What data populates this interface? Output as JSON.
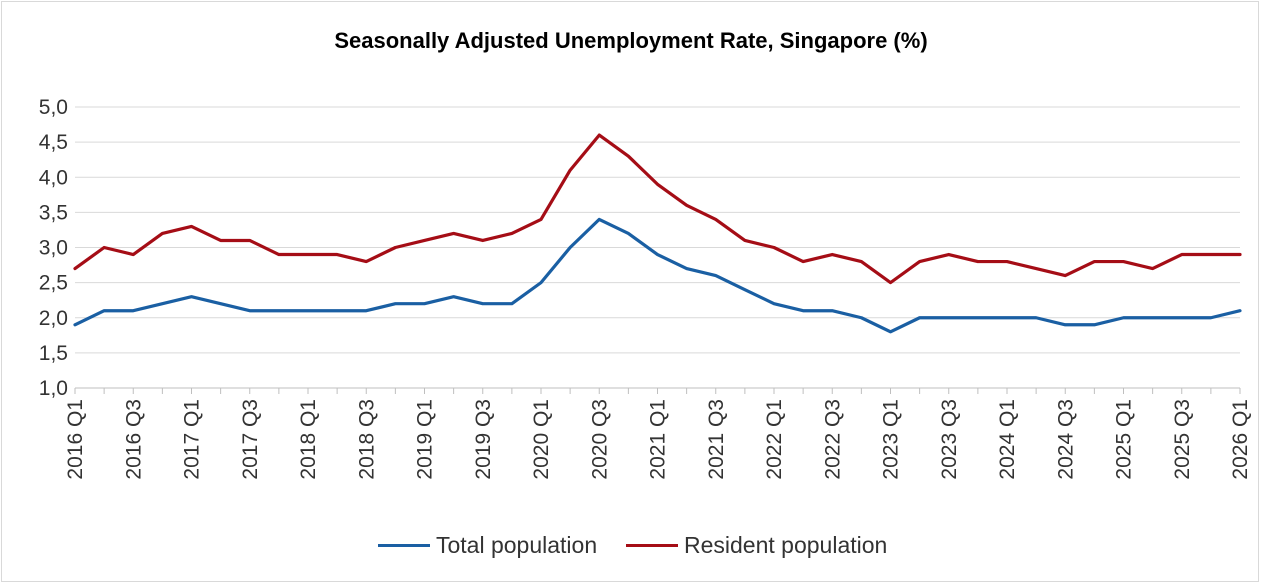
{
  "chart_data": {
    "type": "line",
    "title": "Seasonally Adjusted Unemployment Rate, Singapore (%)",
    "xlabel": "",
    "ylabel": "",
    "ylim": [
      1.0,
      5.0
    ],
    "y_ticks": [
      "1,0",
      "1,5",
      "2,0",
      "2,5",
      "3,0",
      "3,5",
      "4,0",
      "4,5",
      "5,0"
    ],
    "x_tick_labels": [
      "2016 Q1",
      "2016 Q3",
      "2017 Q1",
      "2017 Q3",
      "2018 Q1",
      "2018 Q3",
      "2019 Q1",
      "2019 Q3",
      "2020 Q1",
      "2020 Q3",
      "2021 Q1",
      "2021 Q3",
      "2022 Q1",
      "2022 Q3",
      "2023 Q1",
      "2023 Q3",
      "2024 Q1",
      "2024 Q3",
      "2025 Q1",
      "2025 Q3",
      "2026 Q1"
    ],
    "categories": [
      "2016 Q1",
      "2016 Q2",
      "2016 Q3",
      "2016 Q4",
      "2017 Q1",
      "2017 Q2",
      "2017 Q3",
      "2017 Q4",
      "2018 Q1",
      "2018 Q2",
      "2018 Q3",
      "2018 Q4",
      "2019 Q1",
      "2019 Q2",
      "2019 Q3",
      "2019 Q4",
      "2020 Q1",
      "2020 Q2",
      "2020 Q3",
      "2020 Q4",
      "2021 Q1",
      "2021 Q2",
      "2021 Q3",
      "2021 Q4",
      "2022 Q1",
      "2022 Q2",
      "2022 Q3",
      "2022 Q4",
      "2023 Q1",
      "2023 Q2",
      "2023 Q3",
      "2023 Q4",
      "2024 Q1",
      "2024 Q2",
      "2024 Q3",
      "2024 Q4",
      "2025 Q1",
      "2025 Q2",
      "2025 Q3",
      "2025 Q4",
      "2026 Q1"
    ],
    "series": [
      {
        "name": "Total population",
        "color": "#1a5fa3",
        "values": [
          1.9,
          2.1,
          2.1,
          2.2,
          2.3,
          2.2,
          2.1,
          2.1,
          2.1,
          2.1,
          2.1,
          2.2,
          2.2,
          2.3,
          2.2,
          2.2,
          2.5,
          3.0,
          3.4,
          3.2,
          2.9,
          2.7,
          2.6,
          2.4,
          2.2,
          2.1,
          2.1,
          2.0,
          1.8,
          2.0,
          2.0,
          2.0,
          2.0,
          2.0,
          1.9,
          1.9,
          2.0,
          2.0,
          2.0,
          2.0,
          2.1
        ]
      },
      {
        "name": "Resident population",
        "color": "#a50d16",
        "values": [
          2.7,
          3.0,
          2.9,
          3.2,
          3.3,
          3.1,
          3.1,
          2.9,
          2.9,
          2.9,
          2.8,
          3.0,
          3.1,
          3.2,
          3.1,
          3.2,
          3.4,
          4.1,
          4.6,
          4.3,
          3.9,
          3.6,
          3.4,
          3.1,
          3.0,
          2.8,
          2.9,
          2.8,
          2.5,
          2.8,
          2.9,
          2.8,
          2.8,
          2.7,
          2.6,
          2.8,
          2.8,
          2.7,
          2.9,
          2.9,
          2.9
        ]
      }
    ],
    "grid": true,
    "legend_position": "bottom"
  }
}
